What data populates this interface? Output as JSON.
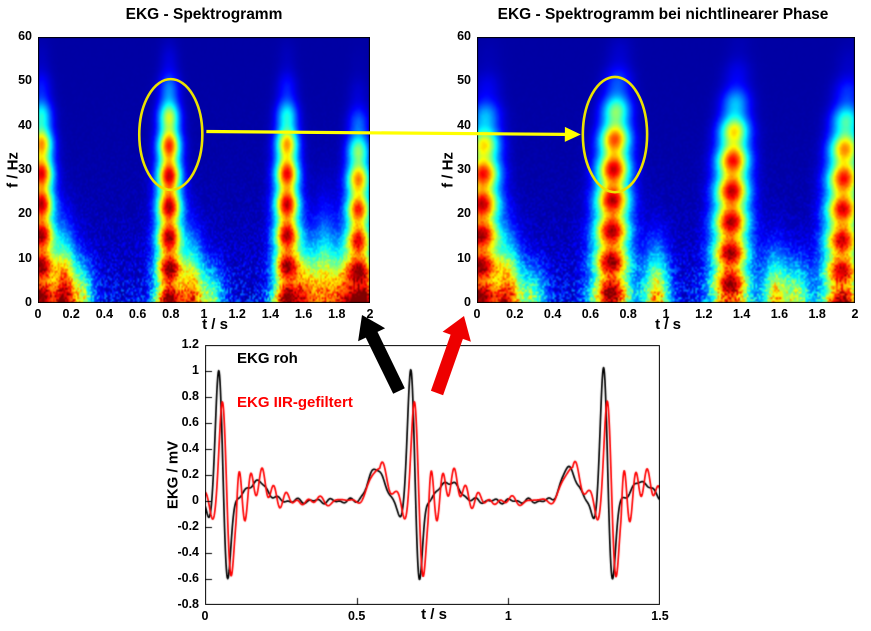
{
  "figure": {
    "background": "#ffffff"
  },
  "chart_data": [
    {
      "id": "spectrogram_raw",
      "type": "heatmap",
      "title": "EKG - Spektrogramm",
      "xlabel": "t / s",
      "ylabel": "f / Hz",
      "xlim": [
        0,
        2
      ],
      "ylim": [
        0,
        60
      ],
      "xticks": [
        "0",
        "0.2",
        "0.4",
        "0.6",
        "0.8",
        "1",
        "1.2",
        "1.4",
        "1.6",
        "1.8",
        "2"
      ],
      "yticks": [
        "0",
        "10",
        "20",
        "30",
        "40",
        "50",
        "60"
      ],
      "colormap": "jet",
      "band_width": 0.048,
      "dispersion": 0,
      "beat_bands": [
        {
          "t": 0.02,
          "f_top": 50,
          "strength": 1.0
        },
        {
          "t": 0.79,
          "f_top": 53,
          "strength": 1.0
        },
        {
          "t": 1.5,
          "f_top": 50,
          "strength": 0.98
        },
        {
          "t": 1.93,
          "f_top": 45,
          "strength": 0.9
        }
      ],
      "low_freq_blobs": [
        {
          "t": 0.16,
          "f_top": 15,
          "strength": 0.85
        },
        {
          "t": 0.27,
          "f_top": 10,
          "strength": 0.45
        },
        {
          "t": 0.93,
          "f_top": 14,
          "strength": 0.7
        },
        {
          "t": 1.05,
          "f_top": 9,
          "strength": 0.4
        },
        {
          "t": 1.62,
          "f_top": 13,
          "strength": 0.65
        },
        {
          "t": 1.73,
          "f_top": 18,
          "strength": 0.6
        },
        {
          "t": 1.83,
          "f_top": 12,
          "strength": 0.55
        },
        {
          "t": 2.0,
          "f_top": 10,
          "strength": 0.4
        }
      ],
      "annotation_ellipse": {
        "t": 0.8,
        "f": 38,
        "rt": 0.19,
        "rf": 12.5
      }
    },
    {
      "id": "spectrogram_nonlinear_phase",
      "type": "heatmap",
      "title": "EKG - Spektrogramm bei nichtlinearer Phase",
      "xlabel": "t / s",
      "ylabel": "f / Hz",
      "xlim": [
        0,
        2
      ],
      "ylim": [
        0,
        60
      ],
      "xticks": [
        "0",
        "0.2",
        "0.4",
        "0.6",
        "0.8",
        "1",
        "1.2",
        "1.4",
        "1.6",
        "1.8",
        "2"
      ],
      "yticks": [
        "0",
        "10",
        "20",
        "30",
        "40",
        "50",
        "60"
      ],
      "colormap": "jet",
      "band_width": 0.058,
      "dispersion": 0.05,
      "beat_bands": [
        {
          "t": 0.02,
          "f_top": 48,
          "strength": 1.0
        },
        {
          "t": 0.71,
          "f_top": 53,
          "strength": 1.0
        },
        {
          "t": 1.34,
          "f_top": 51,
          "strength": 1.0
        },
        {
          "t": 1.93,
          "f_top": 50,
          "strength": 0.95
        }
      ],
      "low_freq_blobs": [
        {
          "t": 0.17,
          "f_top": 14,
          "strength": 0.7
        },
        {
          "t": 0.3,
          "f_top": 9,
          "strength": 0.4
        },
        {
          "t": 0.95,
          "f_top": 13,
          "strength": 0.65
        },
        {
          "t": 1.58,
          "f_top": 12,
          "strength": 0.6
        },
        {
          "t": 1.7,
          "f_top": 10,
          "strength": 0.45
        }
      ],
      "annotation_ellipse": {
        "t": 0.73,
        "f": 38,
        "rt": 0.17,
        "rf": 13
      }
    },
    {
      "id": "ecg_time_series",
      "type": "line",
      "xlabel": "t / s",
      "ylabel": "EKG / mV",
      "xlim": [
        0,
        1.5
      ],
      "ylim": [
        -0.8,
        1.2
      ],
      "xticks": [
        "0",
        "0.5",
        "1",
        "1.5"
      ],
      "yticks": [
        "1.2",
        "1",
        "0.8",
        "0.6",
        "0.4",
        "0.2",
        "0",
        "-0.2",
        "-0.4",
        "-0.6",
        "-0.8"
      ],
      "series": [
        {
          "name": "EKG roh",
          "color": "#000000",
          "r_peaks": [
            0.046,
            0.679,
            1.315
          ],
          "r_amplitude": 1.05,
          "s_amplitude": -0.65,
          "filtered": false
        },
        {
          "name": "EKG IIR-gefiltert",
          "color": "#ff0000",
          "r_peaks": [
            0.058,
            0.691,
            1.327
          ],
          "r_amplitude": 0.8,
          "s_amplitude": -0.62,
          "filtered": true
        }
      ]
    }
  ],
  "annotations": {
    "highlight_ellipse_color": "#ece300",
    "connector_arrow_color": "#ffff00",
    "raw_arrow_color": "#000000",
    "filtered_arrow_color": "#ee0000"
  }
}
